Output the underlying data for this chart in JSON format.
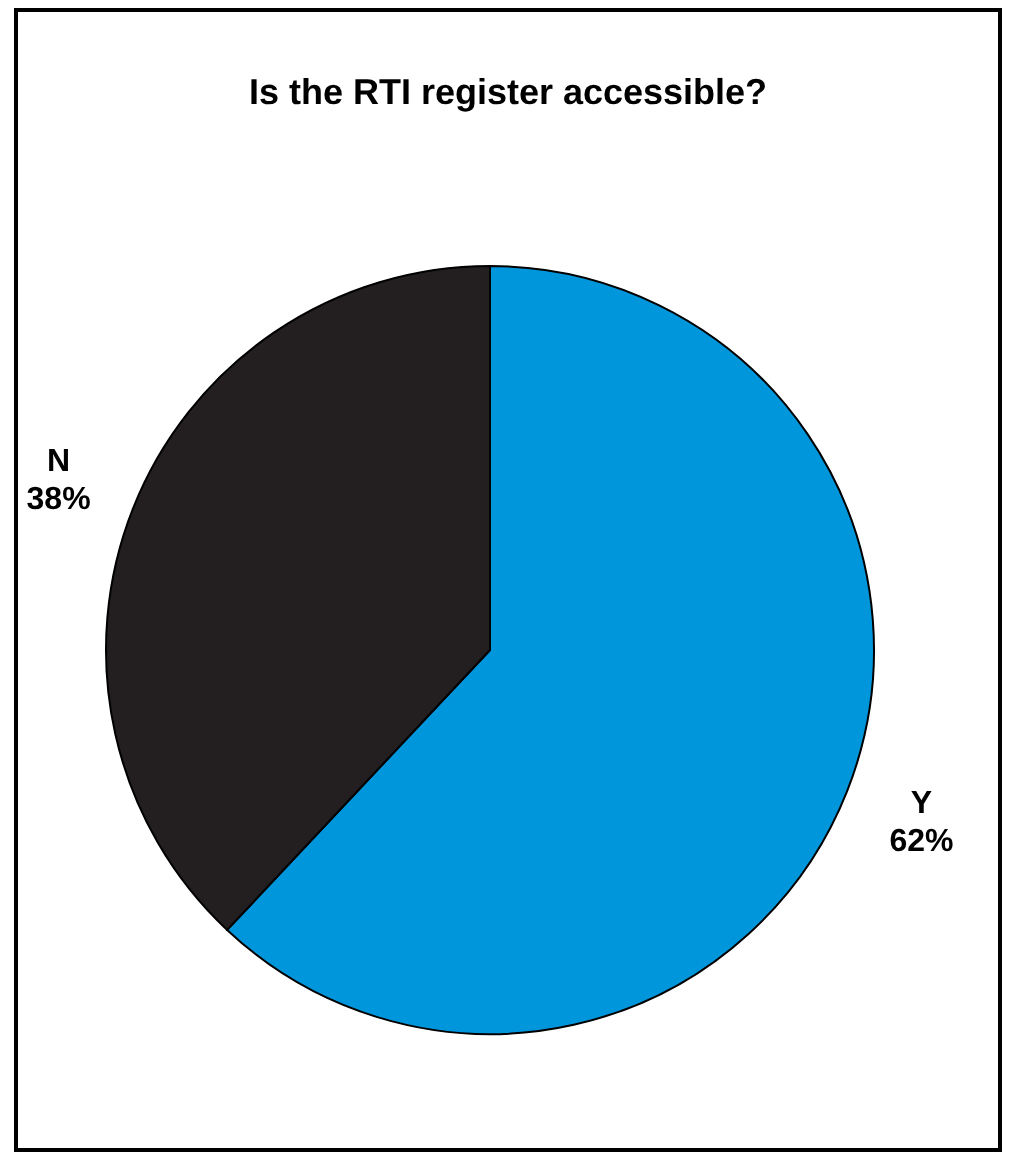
{
  "chart_data": {
    "type": "pie",
    "title": "Is the RTI register accessible?",
    "categories": [
      "Y",
      "N"
    ],
    "values": [
      62,
      38
    ],
    "value_labels": [
      "62%",
      "38%"
    ],
    "colors": [
      "#0096dc",
      "#231f20"
    ]
  }
}
